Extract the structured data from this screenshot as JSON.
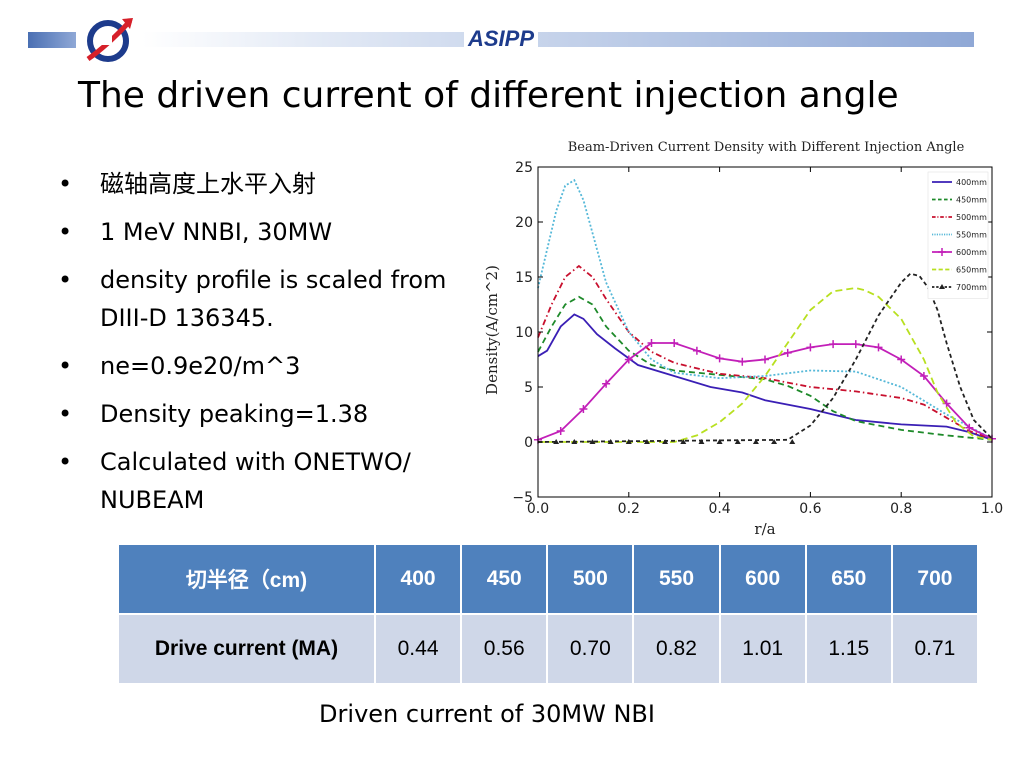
{
  "header": {
    "org_name": "ASIPP",
    "accent_color": "#1d3b8c",
    "bar_color": "#6f8fc8"
  },
  "slide": {
    "title": "The driven current of different injection angle",
    "bullets": [
      "磁轴高度上水平入射",
      "1 MeV  NNBI, 30MW",
      "density profile is scaled from DIII-D 136345.",
      "ne=0.9e20/m^3",
      "Density peaking=1.38",
      "Calculated with ONETWO/ NUBEAM"
    ]
  },
  "chart_data": {
    "type": "line",
    "title": "Beam-Driven Current Density with Different Injection Angle",
    "xlabel": "r/a",
    "ylabel": "Density(A/cm^2)",
    "xlim": [
      0.0,
      1.0
    ],
    "ylim": [
      -5,
      25
    ],
    "xticks": [
      "0.0",
      "0.2",
      "0.4",
      "0.6",
      "0.8",
      "1.0"
    ],
    "yticks": [
      "−5",
      "0",
      "5",
      "10",
      "15",
      "20",
      "25"
    ],
    "legend_position": "top-right",
    "grid": false,
    "series": [
      {
        "name": "400mm",
        "color": "#3a1fb5",
        "dash": "solid",
        "marker": "none",
        "x": [
          0,
          0.02,
          0.05,
          0.08,
          0.1,
          0.13,
          0.17,
          0.22,
          0.3,
          0.38,
          0.45,
          0.5,
          0.6,
          0.7,
          0.8,
          0.9,
          0.95,
          1.0
        ],
        "y": [
          7.8,
          8.3,
          10.5,
          11.6,
          11.2,
          9.8,
          8.5,
          7.0,
          6.0,
          5.0,
          4.5,
          3.8,
          3.0,
          2.0,
          1.6,
          1.4,
          0.9,
          0.2
        ]
      },
      {
        "name": "450mm",
        "color": "#1e8a2a",
        "dash": "6,4",
        "marker": "none",
        "x": [
          0,
          0.03,
          0.06,
          0.09,
          0.12,
          0.15,
          0.2,
          0.25,
          0.3,
          0.4,
          0.5,
          0.55,
          0.6,
          0.65,
          0.7,
          0.8,
          0.9,
          1.0
        ],
        "y": [
          8.2,
          10.5,
          12.5,
          13.2,
          12.5,
          10.5,
          8.3,
          7.0,
          6.5,
          6.1,
          5.7,
          5.1,
          4.2,
          2.8,
          1.9,
          1.1,
          0.6,
          0.2
        ]
      },
      {
        "name": "500mm",
        "color": "#c8102e",
        "dash": "6,3,1.5,3",
        "marker": "none",
        "x": [
          0,
          0.03,
          0.06,
          0.09,
          0.12,
          0.15,
          0.2,
          0.25,
          0.3,
          0.4,
          0.5,
          0.6,
          0.7,
          0.8,
          0.85,
          0.9,
          0.95,
          1.0
        ],
        "y": [
          9.5,
          12.5,
          15.0,
          16.0,
          15.0,
          13.0,
          10.0,
          8.2,
          7.2,
          6.2,
          5.8,
          5.0,
          4.6,
          4.0,
          3.4,
          2.2,
          1.0,
          0.3
        ]
      },
      {
        "name": "550mm",
        "color": "#55b8d8",
        "dash": "2,2",
        "marker": "none",
        "x": [
          0,
          0.02,
          0.04,
          0.06,
          0.08,
          0.1,
          0.12,
          0.15,
          0.2,
          0.25,
          0.3,
          0.4,
          0.5,
          0.6,
          0.7,
          0.8,
          0.9,
          1.0
        ],
        "y": [
          14.0,
          17.5,
          21.0,
          23.3,
          23.8,
          22.0,
          19.0,
          14.5,
          10.0,
          7.5,
          6.3,
          5.8,
          6.0,
          6.5,
          6.4,
          5.0,
          2.5,
          0.3
        ]
      },
      {
        "name": "600mm",
        "color": "#c21fb8",
        "dash": "solid",
        "marker": "plus",
        "x": [
          0,
          0.05,
          0.1,
          0.15,
          0.2,
          0.25,
          0.3,
          0.35,
          0.4,
          0.45,
          0.5,
          0.55,
          0.6,
          0.65,
          0.7,
          0.75,
          0.8,
          0.85,
          0.9,
          0.95,
          1.0
        ],
        "y": [
          0.2,
          1.0,
          3.0,
          5.3,
          7.5,
          9.0,
          9.0,
          8.3,
          7.6,
          7.3,
          7.5,
          8.1,
          8.6,
          8.9,
          8.9,
          8.6,
          7.5,
          6.0,
          3.5,
          1.3,
          0.3
        ]
      },
      {
        "name": "650mm",
        "color": "#b8e020",
        "dash": "7,4",
        "marker": "none",
        "x": [
          0,
          0.3,
          0.35,
          0.4,
          0.45,
          0.5,
          0.55,
          0.6,
          0.65,
          0.7,
          0.72,
          0.75,
          0.8,
          0.85,
          0.88,
          0.92,
          0.96,
          1.0
        ],
        "y": [
          0,
          0,
          0.6,
          1.8,
          3.5,
          6.0,
          9.0,
          12.0,
          13.7,
          14.0,
          13.8,
          13.2,
          11.2,
          7.5,
          4.5,
          1.8,
          0.5,
          0.2
        ]
      },
      {
        "name": "700mm",
        "color": "#222222",
        "dash": "4,3",
        "marker": "tri",
        "x": [
          0,
          0.55,
          0.6,
          0.65,
          0.7,
          0.75,
          0.8,
          0.82,
          0.84,
          0.86,
          0.88,
          0.9,
          0.93,
          0.96,
          1.0
        ],
        "y": [
          0,
          0.2,
          1.5,
          4.0,
          7.5,
          11.5,
          14.5,
          15.3,
          15.1,
          14.0,
          12.0,
          9.0,
          5.0,
          2.0,
          0.3
        ]
      }
    ]
  },
  "table": {
    "header_label": "切半径（cm)",
    "columns": [
      "400",
      "450",
      "500",
      "550",
      "600",
      "650",
      "700"
    ],
    "row_label": "Drive current (MA)",
    "values": [
      "0.44",
      "0.56",
      "0.70",
      "0.82",
      "1.01",
      "1.15",
      "0.71"
    ]
  },
  "caption": "Driven current of 30MW NBI"
}
